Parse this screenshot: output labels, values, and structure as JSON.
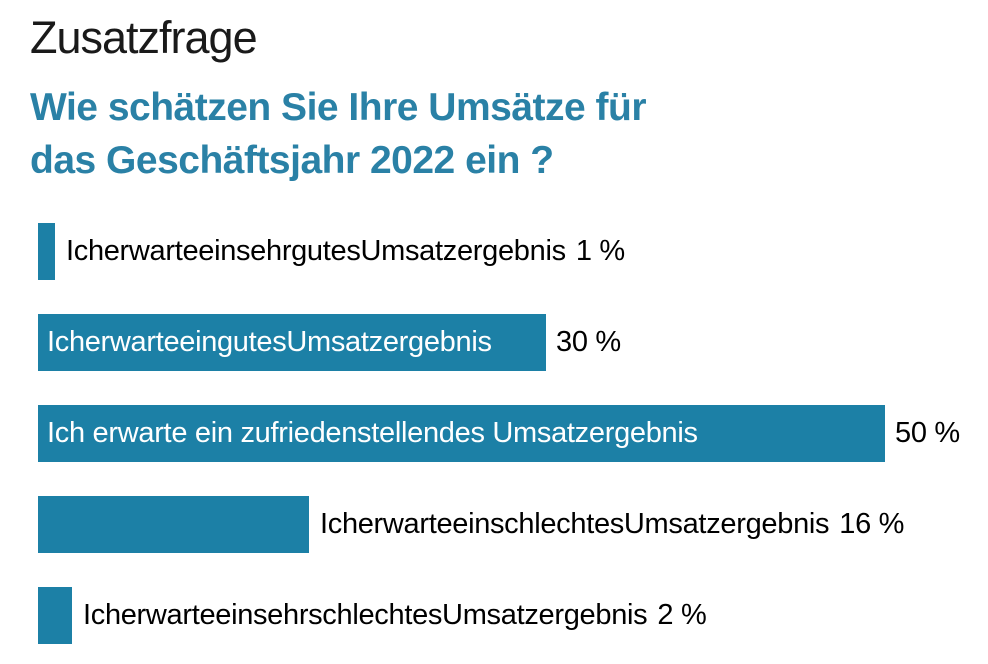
{
  "colors": {
    "title": "#1a1a1a",
    "accent": "#2a81a6",
    "bar": "#1c80a6",
    "label_inside": "#ffffff",
    "label_outside": "#000000",
    "background": "#ffffff"
  },
  "chart_data": {
    "type": "bar",
    "orientation": "horizontal",
    "title": "Zusatzfrage",
    "subtitle": "Wie schätzen Sie Ihre Umsätze für das Geschäftsjahr 2022 ein ?",
    "subtitle_lines": [
      "Wie schätzen Sie Ihre Umsätze für",
      "das Geschäftsjahr 2022 ein ?"
    ],
    "unit": "%",
    "categories": [
      "Ich erwarte ein sehr gutes Umsatzergebnis",
      "Ich erwarte ein gutes Umsatzergebnis",
      "Ich erwarte ein zufriedenstellendes Umsatzergebnis",
      "Ich erwarte ein schlechtes Umsatzergebnis",
      "Ich erwarte ein sehr schlechtes Umsatzergebnis"
    ],
    "values": [
      1,
      30,
      50,
      16,
      2
    ],
    "value_labels": [
      "1 %",
      "30 %",
      "50 %",
      "16 %",
      "2 %"
    ],
    "label_positions": [
      "outside",
      "inside",
      "inside",
      "outside",
      "outside"
    ],
    "tight_label_spacing": [
      true,
      true,
      false,
      true,
      true
    ],
    "xlim": [
      0,
      50
    ],
    "axis_visible": false,
    "grid": false,
    "legend": false,
    "bar_color": "#1c80a6"
  }
}
